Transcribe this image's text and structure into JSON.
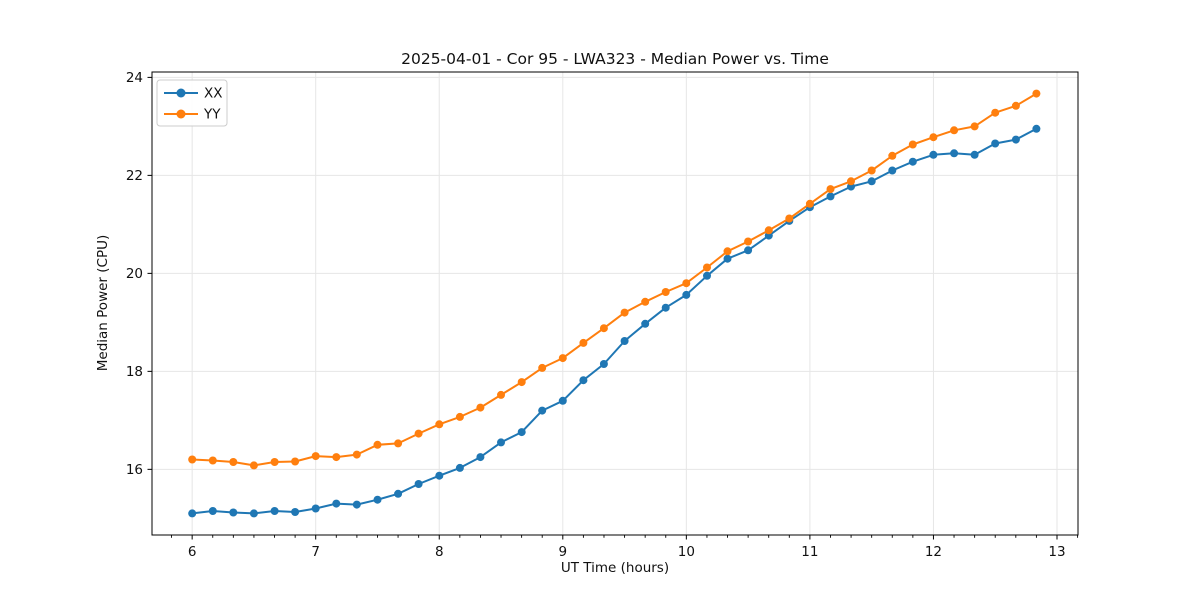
{
  "chart_data": {
    "type": "line",
    "title": "2025-04-01 - Cor 95 - LWA323 - Median Power vs. Time",
    "xlabel": "UT Time (hours)",
    "ylabel": "Median Power (CPU)",
    "x": [
      6.0,
      6.167,
      6.333,
      6.5,
      6.667,
      6.833,
      7.0,
      7.167,
      7.333,
      7.5,
      7.667,
      7.833,
      8.0,
      8.167,
      8.333,
      8.5,
      8.667,
      8.833,
      9.0,
      9.167,
      9.333,
      9.5,
      9.667,
      9.833,
      10.0,
      10.167,
      10.333,
      10.5,
      10.667,
      10.833,
      11.0,
      11.167,
      11.333,
      11.5,
      11.667,
      11.833,
      12.0,
      12.167,
      12.333,
      12.5,
      12.667,
      12.833
    ],
    "series": [
      {
        "name": "XX",
        "color": "#1f77b4",
        "values": [
          15.1,
          15.15,
          15.12,
          15.1,
          15.15,
          15.13,
          15.2,
          15.3,
          15.28,
          15.38,
          15.5,
          15.7,
          15.87,
          16.03,
          16.25,
          16.55,
          16.76,
          17.2,
          17.4,
          17.82,
          18.15,
          18.62,
          18.97,
          19.3,
          19.56,
          19.95,
          20.3,
          20.47,
          20.77,
          21.07,
          21.35,
          21.57,
          21.77,
          21.88,
          22.1,
          22.28,
          22.42,
          22.45,
          22.42,
          22.65,
          22.73,
          22.95
        ]
      },
      {
        "name": "YY",
        "color": "#ff7f0e",
        "values": [
          16.2,
          16.18,
          16.15,
          16.08,
          16.15,
          16.16,
          16.27,
          16.25,
          16.3,
          16.5,
          16.53,
          16.73,
          16.92,
          17.07,
          17.26,
          17.52,
          17.78,
          18.07,
          18.27,
          18.58,
          18.88,
          19.2,
          19.42,
          19.62,
          19.8,
          20.12,
          20.45,
          20.65,
          20.88,
          21.12,
          21.42,
          21.72,
          21.88,
          22.1,
          22.4,
          22.63,
          22.78,
          22.92,
          23.0,
          23.28,
          23.42,
          23.67
        ]
      }
    ],
    "xlim": [
      5.675,
      13.17
    ],
    "ylim": [
      14.66,
      24.11
    ],
    "xticks": [
      6,
      7,
      8,
      9,
      10,
      11,
      12,
      13
    ],
    "yticks": [
      16,
      18,
      20,
      22,
      24
    ],
    "x_minor_tick_step": 0.1667,
    "grid": true,
    "legend": {
      "position": "upper-left",
      "entries": [
        "XX",
        "YY"
      ]
    }
  },
  "style": {
    "grid_color": "#e6e6e6",
    "spine_color": "#000000",
    "tick_color": "#000000",
    "text_color": "#111111",
    "background": "#ffffff"
  }
}
